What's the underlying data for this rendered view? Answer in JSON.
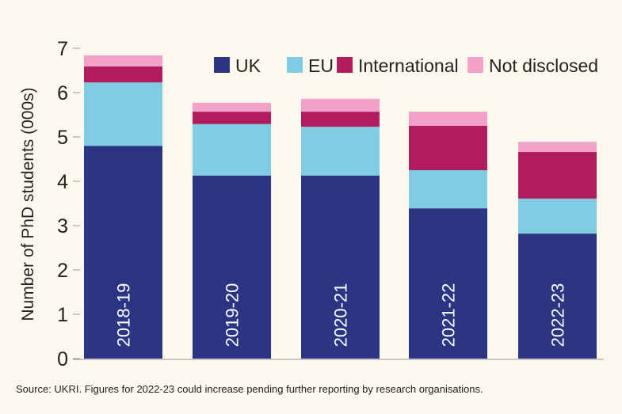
{
  "chart_data": {
    "type": "bar",
    "stacked": true,
    "title": "",
    "xlabel": "",
    "ylabel": "Number of PhD students (000s)",
    "ylim": [
      0,
      7
    ],
    "yticks": [
      0,
      1,
      2,
      3,
      4,
      5,
      6,
      7
    ],
    "grid": false,
    "legend_placement": "top-right",
    "categories": [
      "2018-19",
      "2019-20",
      "2020-21",
      "2021-22",
      "2022-23"
    ],
    "series": [
      {
        "name": "UK",
        "color": "#2b3584",
        "values": [
          4.8,
          4.13,
          4.13,
          3.39,
          2.82
        ]
      },
      {
        "name": "EU",
        "color": "#7fcce3",
        "values": [
          1.43,
          1.16,
          1.1,
          0.86,
          0.79
        ]
      },
      {
        "name": "International",
        "color": "#b01c5e",
        "values": [
          0.36,
          0.28,
          0.34,
          1.0,
          1.05
        ]
      },
      {
        "name": "Not disclosed",
        "color": "#f2a2c8",
        "values": [
          0.25,
          0.2,
          0.29,
          0.32,
          0.23
        ]
      }
    ]
  },
  "source": "Source: UKRI. Figures for 2022-23 could increase pending further reporting by research organisations."
}
